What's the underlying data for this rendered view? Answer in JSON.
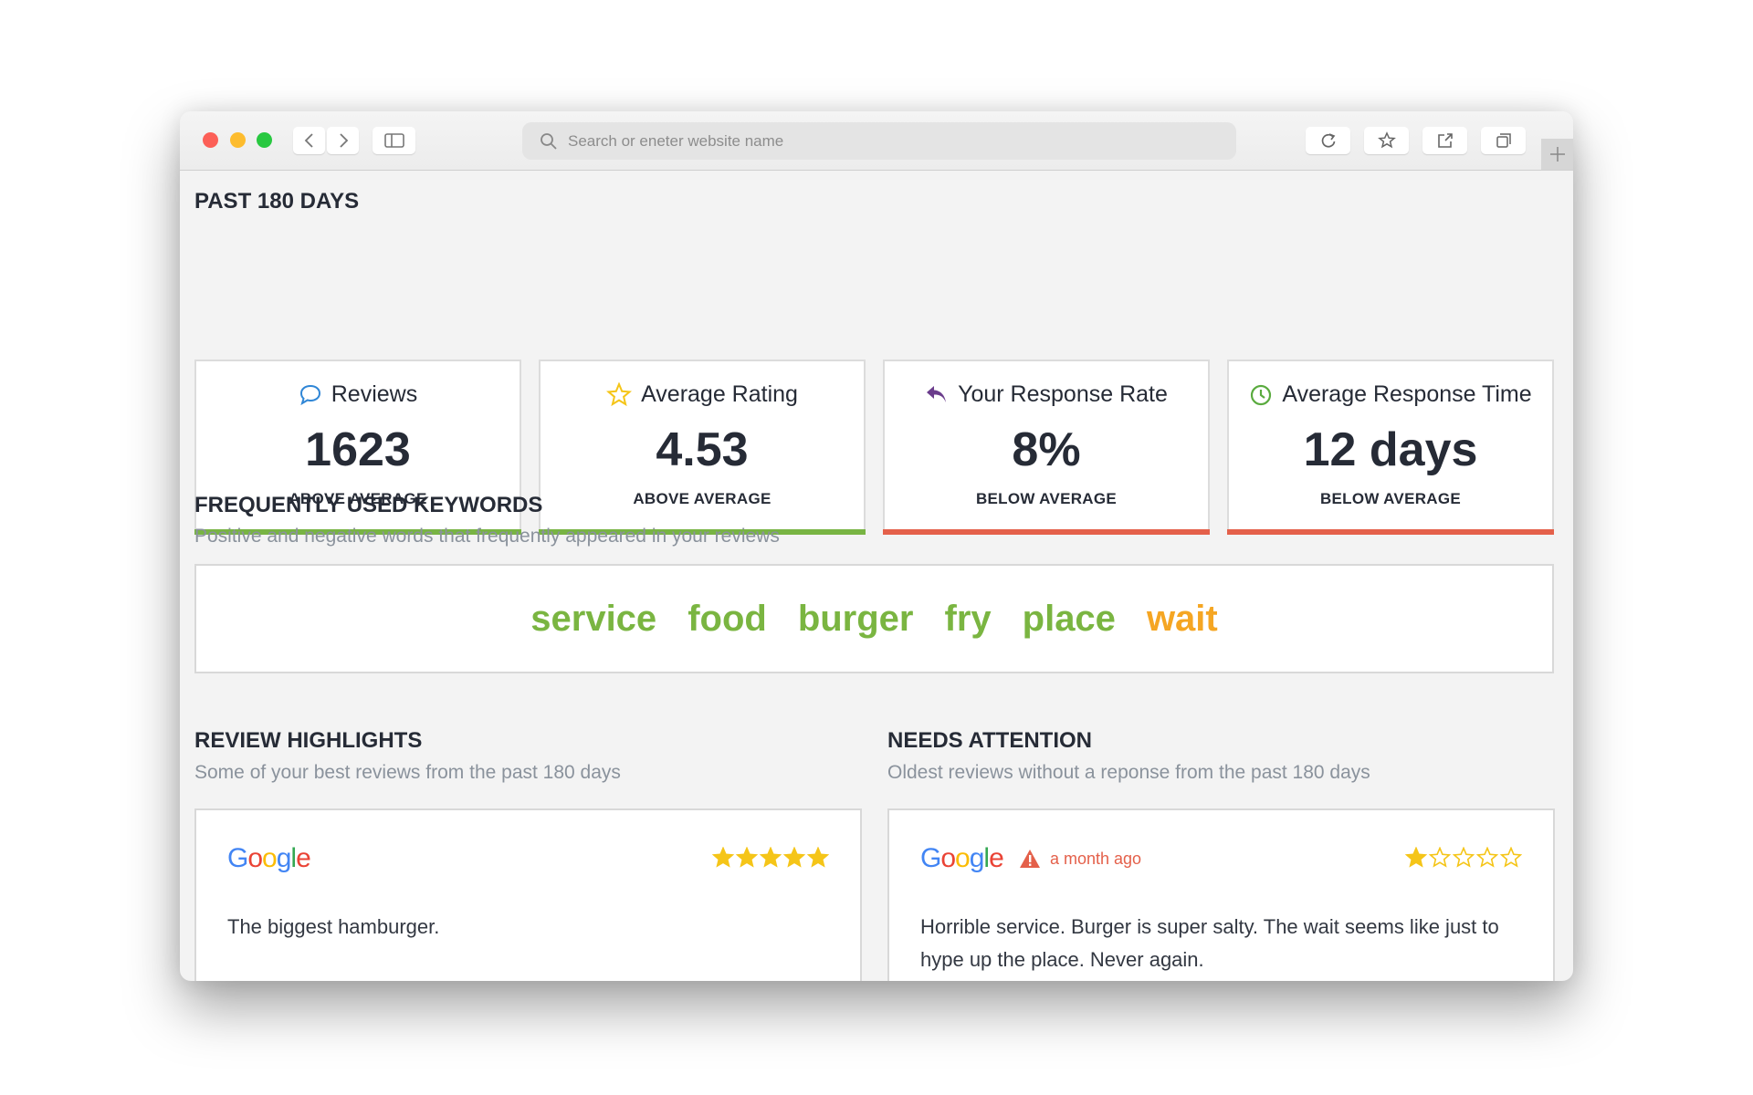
{
  "browser": {
    "search_placeholder": "Search or eneter website name"
  },
  "period": {
    "title": "PAST 180 DAYS"
  },
  "metrics": [
    {
      "title": "Reviews",
      "value": "1623",
      "label": "ABOVE AVERAGE",
      "color": "#78b443"
    },
    {
      "title": "Average Rating",
      "value": "4.53",
      "label": "ABOVE AVERAGE",
      "color": "#78b443"
    },
    {
      "title": "Your Response Rate",
      "value": "8%",
      "label": "BELOW AVERAGE",
      "color": "#e4604a"
    },
    {
      "title": "Average Response Time",
      "value": "12 days",
      "label": "BELOW AVERAGE",
      "color": "#e4604a"
    }
  ],
  "keywords": {
    "title": "FREQUENTLY USED KEYWORDS",
    "subtitle": "Positive and negative words that frequently appeared in your reviews",
    "words": [
      {
        "text": "service",
        "color": "#7ab541"
      },
      {
        "text": "food",
        "color": "#7ab541"
      },
      {
        "text": "burger",
        "color": "#7ab541"
      },
      {
        "text": "fry",
        "color": "#7ab541"
      },
      {
        "text": "place",
        "color": "#7ab541"
      },
      {
        "text": "wait",
        "color": "#f5a623"
      }
    ]
  },
  "highlights": {
    "title": "REVIEW HIGHLIGHTS",
    "subtitle": "Some of your best reviews from the past 180 days",
    "review": {
      "source": "Google",
      "rating": 5,
      "text": "The biggest hamburger."
    }
  },
  "attention": {
    "title": "NEEDS ATTENTION",
    "subtitle": "Oldest reviews without a reponse from the past 180 days",
    "review": {
      "source": "Google",
      "time": "a month ago",
      "rating": 1,
      "text": "Horrible service. Burger is super salty. The wait seems like just to hype up the place. Never again."
    }
  }
}
